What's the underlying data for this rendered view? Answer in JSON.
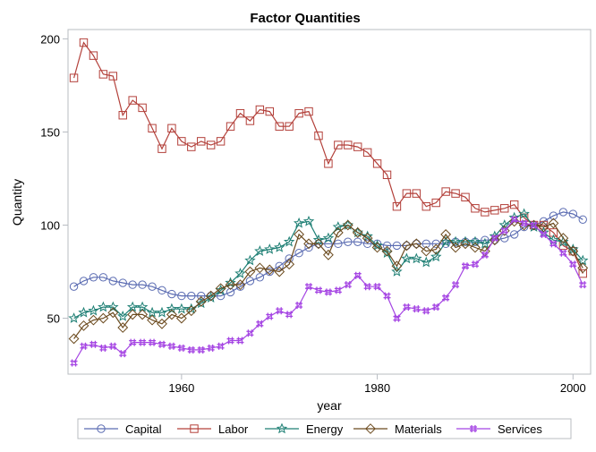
{
  "chart_data": {
    "type": "line",
    "title": "Factor Quantities",
    "xlabel": "year",
    "ylabel": "Quantity",
    "xlim": [
      1948.4,
      2001.8
    ],
    "ylim": [
      20,
      205
    ],
    "xticks": [
      1960,
      1980,
      2000
    ],
    "yticks": [
      50,
      100,
      150,
      200
    ],
    "grid": false,
    "legend_position": "bottom",
    "x": [
      1949,
      1950,
      1951,
      1952,
      1953,
      1954,
      1955,
      1956,
      1957,
      1958,
      1959,
      1960,
      1961,
      1962,
      1963,
      1964,
      1965,
      1966,
      1967,
      1968,
      1969,
      1970,
      1971,
      1972,
      1973,
      1974,
      1975,
      1976,
      1977,
      1978,
      1979,
      1980,
      1981,
      1982,
      1983,
      1984,
      1985,
      1986,
      1987,
      1988,
      1989,
      1990,
      1991,
      1992,
      1993,
      1994,
      1995,
      1996,
      1997,
      1998,
      1999,
      2000,
      2001
    ],
    "series": [
      {
        "name": "Capital",
        "color": "#5B6CB2",
        "marker": "circle",
        "values": [
          67,
          70,
          72,
          72,
          70,
          69,
          68,
          68,
          67,
          65,
          63,
          62,
          62,
          62,
          62,
          62,
          64,
          67,
          70,
          72,
          75,
          78,
          82,
          85,
          88,
          90,
          90,
          90,
          91,
          91,
          90,
          90,
          89,
          89,
          89,
          90,
          90,
          90,
          90,
          91,
          91,
          91,
          92,
          92,
          93,
          95,
          99,
          100,
          102,
          105,
          107,
          106,
          103
        ]
      },
      {
        "name": "Labor",
        "color": "#B3403A",
        "marker": "square",
        "values": [
          179,
          198,
          191,
          181,
          180,
          159,
          167,
          163,
          152,
          141,
          152,
          145,
          142,
          145,
          143,
          145,
          153,
          160,
          156,
          162,
          161,
          153,
          153,
          160,
          161,
          148,
          133,
          143,
          143,
          142,
          139,
          133,
          127,
          110,
          117,
          117,
          110,
          112,
          118,
          117,
          115,
          109,
          107,
          108,
          109,
          111,
          104,
          100,
          100,
          96,
          89,
          86,
          74
        ]
      },
      {
        "name": "Energy",
        "color": "#1E7F74",
        "marker": "star",
        "values": [
          50,
          53,
          54,
          56,
          56,
          51,
          56,
          56,
          53,
          53,
          55,
          55,
          55,
          58,
          61,
          65,
          69,
          74,
          81,
          86,
          87,
          88,
          91,
          101,
          102,
          92,
          93,
          99,
          100,
          96,
          94,
          89,
          85,
          75,
          82,
          82,
          80,
          83,
          91,
          91,
          91,
          91,
          90,
          94,
          100,
          104,
          106,
          99,
          96,
          92,
          91,
          87,
          81
        ]
      },
      {
        "name": "Materials",
        "color": "#6B4A1E",
        "marker": "diamond",
        "values": [
          39,
          46,
          49,
          50,
          53,
          45,
          52,
          52,
          49,
          47,
          52,
          50,
          54,
          59,
          62,
          66,
          68,
          68,
          75,
          77,
          76,
          75,
          79,
          95,
          90,
          90,
          84,
          96,
          100,
          96,
          93,
          88,
          86,
          78,
          89,
          90,
          86,
          87,
          95,
          88,
          90,
          88,
          86,
          92,
          97,
          102,
          100,
          100,
          99,
          101,
          93,
          86,
          77
        ]
      },
      {
        "name": "Services",
        "color": "#A545E3",
        "marker": "hash",
        "values": [
          26,
          35,
          36,
          34,
          35,
          31,
          37,
          37,
          37,
          36,
          35,
          34,
          33,
          33,
          34,
          35,
          38,
          38,
          42,
          47,
          51,
          54,
          52,
          57,
          67,
          65,
          64,
          65,
          68,
          73,
          67,
          67,
          62,
          50,
          56,
          55,
          54,
          56,
          61,
          68,
          78,
          79,
          84,
          93,
          97,
          103,
          101,
          100,
          95,
          90,
          85,
          79,
          68
        ]
      }
    ]
  }
}
